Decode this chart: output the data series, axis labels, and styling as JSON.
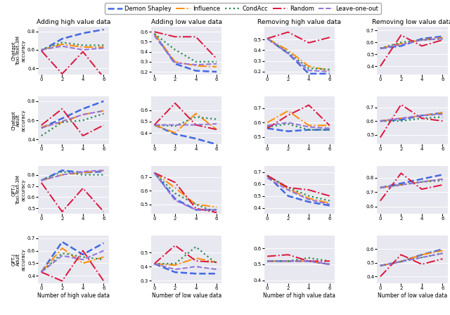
{
  "legend_labels": [
    "Demon Shapley",
    "Influence",
    "CondAcc",
    "Random",
    "Leave-one-out"
  ],
  "legend_colors": [
    "#4169e1",
    "#ff8c00",
    "#2e8b57",
    "#dc143c",
    "#9370db"
  ],
  "col_titles": [
    "Adding high value data",
    "Adding low value data",
    "Removing high value data",
    "Removing low value data"
  ],
  "row_labels": [
    [
      "Chatgpt",
      "Toxi-Text-3M"
    ],
    [
      "Chatgpt",
      "Adult"
    ],
    [
      "GPT-J",
      "Toxi-Text-3M"
    ],
    [
      "GPT-J",
      "Adult"
    ]
  ],
  "col_xlabels": [
    "Number of high value data",
    "Number of low value data",
    "Number of high value data",
    "Number of low value data"
  ],
  "x": [
    0,
    2,
    4,
    6
  ],
  "data": {
    "col0": {
      "row0": {
        "ylim": [
          0.33,
          0.85
        ],
        "yticks": [
          0.4,
          0.6,
          0.8
        ],
        "series": {
          "Demon Shapley": [
            0.59,
            0.72,
            0.78,
            0.82
          ],
          "Influence": [
            0.6,
            0.66,
            0.63,
            0.63
          ],
          "CondAcc": [
            0.6,
            0.68,
            0.65,
            0.65
          ],
          "Random": [
            0.59,
            0.34,
            0.58,
            0.3
          ],
          "Leave-one-out": [
            0.6,
            0.64,
            0.6,
            0.62
          ]
        }
      },
      "row1": {
        "ylim": [
          0.35,
          0.85
        ],
        "yticks": [
          0.4,
          0.6,
          0.8
        ],
        "series": {
          "Demon Shapley": [
            0.52,
            0.62,
            0.72,
            0.8
          ],
          "Influence": [
            0.53,
            0.58,
            0.66,
            0.7
          ],
          "CondAcc": [
            0.44,
            0.58,
            0.6,
            0.67
          ],
          "Random": [
            0.55,
            0.72,
            0.44,
            0.55
          ],
          "Leave-one-out": [
            0.52,
            0.59,
            0.66,
            0.7
          ]
        }
      },
      "row2": {
        "ylim": [
          0.45,
          0.88
        ],
        "yticks": [
          0.5,
          0.6,
          0.7,
          0.8
        ],
        "series": {
          "Demon Shapley": [
            0.75,
            0.84,
            0.82,
            0.83
          ],
          "Influence": [
            0.75,
            0.8,
            0.82,
            0.84
          ],
          "CondAcc": [
            0.75,
            0.83,
            0.8,
            0.8
          ],
          "Random": [
            0.73,
            0.47,
            0.68,
            0.47
          ],
          "Leave-one-out": [
            0.75,
            0.8,
            0.83,
            0.84
          ]
        }
      },
      "row3": {
        "ylim": [
          0.34,
          0.72
        ],
        "yticks": [
          0.4,
          0.5,
          0.6,
          0.7
        ],
        "series": {
          "Demon Shapley": [
            0.43,
            0.67,
            0.57,
            0.66
          ],
          "Influence": [
            0.43,
            0.62,
            0.5,
            0.55
          ],
          "CondAcc": [
            0.43,
            0.58,
            0.55,
            0.53
          ],
          "Random": [
            0.43,
            0.36,
            0.6,
            0.36
          ],
          "Leave-one-out": [
            0.43,
            0.56,
            0.53,
            0.6
          ]
        }
      }
    },
    "col1": {
      "row0": {
        "ylim": [
          0.17,
          0.65
        ],
        "yticks": [
          0.2,
          0.3,
          0.4,
          0.5,
          0.6
        ],
        "series": {
          "Demon Shapley": [
            0.58,
            0.28,
            0.21,
            0.2
          ],
          "Influence": [
            0.58,
            0.3,
            0.26,
            0.25
          ],
          "CondAcc": [
            0.58,
            0.42,
            0.3,
            0.3
          ],
          "Random": [
            0.6,
            0.55,
            0.55,
            0.33
          ],
          "Leave-one-out": [
            0.56,
            0.29,
            0.27,
            0.28
          ]
        }
      },
      "row1": {
        "ylim": [
          0.3,
          0.72
        ],
        "yticks": [
          0.4,
          0.5,
          0.6
        ],
        "series": {
          "Demon Shapley": [
            0.47,
            0.39,
            0.35,
            0.3
          ],
          "Influence": [
            0.47,
            0.4,
            0.57,
            0.43
          ],
          "CondAcc": [
            0.47,
            0.46,
            0.54,
            0.52
          ],
          "Random": [
            0.47,
            0.66,
            0.47,
            0.43
          ],
          "Leave-one-out": [
            0.47,
            0.47,
            0.47,
            0.48
          ]
        }
      },
      "row2": {
        "ylim": [
          0.43,
          0.78
        ],
        "yticks": [
          0.5,
          0.6,
          0.7
        ],
        "series": {
          "Demon Shapley": [
            0.73,
            0.54,
            0.46,
            0.46
          ],
          "Influence": [
            0.73,
            0.62,
            0.5,
            0.48
          ],
          "CondAcc": [
            0.73,
            0.58,
            0.5,
            0.44
          ],
          "Random": [
            0.73,
            0.66,
            0.47,
            0.44
          ],
          "Leave-one-out": [
            0.73,
            0.53,
            0.46,
            0.46
          ]
        }
      },
      "row3": {
        "ylim": [
          0.28,
          0.62
        ],
        "yticks": [
          0.3,
          0.4,
          0.5
        ],
        "series": {
          "Demon Shapley": [
            0.42,
            0.36,
            0.35,
            0.35
          ],
          "Influence": [
            0.42,
            0.41,
            0.46,
            0.43
          ],
          "CondAcc": [
            0.42,
            0.42,
            0.54,
            0.42
          ],
          "Random": [
            0.42,
            0.55,
            0.44,
            0.43
          ],
          "Leave-one-out": [
            0.42,
            0.38,
            0.4,
            0.38
          ]
        }
      }
    },
    "col2": {
      "row0": {
        "ylim": [
          0.17,
          0.62
        ],
        "yticks": [
          0.2,
          0.3,
          0.4,
          0.5
        ],
        "series": {
          "Demon Shapley": [
            0.51,
            0.37,
            0.18,
            0.18
          ],
          "Influence": [
            0.51,
            0.4,
            0.25,
            0.21
          ],
          "CondAcc": [
            0.51,
            0.38,
            0.23,
            0.22
          ],
          "Random": [
            0.51,
            0.57,
            0.47,
            0.52
          ],
          "Leave-one-out": [
            0.51,
            0.37,
            0.21,
            0.2
          ]
        }
      },
      "row1": {
        "ylim": [
          0.45,
          0.78
        ],
        "yticks": [
          0.5,
          0.6,
          0.7
        ],
        "series": {
          "Demon Shapley": [
            0.56,
            0.54,
            0.55,
            0.55
          ],
          "Influence": [
            0.6,
            0.68,
            0.58,
            0.58
          ],
          "CondAcc": [
            0.57,
            0.59,
            0.55,
            0.55
          ],
          "Random": [
            0.56,
            0.65,
            0.72,
            0.58
          ],
          "Leave-one-out": [
            0.58,
            0.6,
            0.57,
            0.56
          ]
        }
      },
      "row2": {
        "ylim": [
          0.35,
          0.75
        ],
        "yticks": [
          0.4,
          0.5,
          0.6,
          0.7
        ],
        "series": {
          "Demon Shapley": [
            0.67,
            0.5,
            0.45,
            0.42
          ],
          "Influence": [
            0.67,
            0.56,
            0.48,
            0.44
          ],
          "CondAcc": [
            0.67,
            0.57,
            0.5,
            0.46
          ],
          "Random": [
            0.67,
            0.57,
            0.55,
            0.5
          ],
          "Leave-one-out": [
            0.65,
            0.55,
            0.47,
            0.43
          ]
        }
      },
      "row3": {
        "ylim": [
          0.38,
          0.68
        ],
        "yticks": [
          0.4,
          0.5,
          0.6
        ],
        "series": {
          "Demon Shapley": [
            0.52,
            0.52,
            0.52,
            0.5
          ],
          "Influence": [
            0.52,
            0.52,
            0.52,
            0.5
          ],
          "CondAcc": [
            0.52,
            0.52,
            0.54,
            0.52
          ],
          "Random": [
            0.55,
            0.56,
            0.52,
            0.52
          ],
          "Leave-one-out": [
            0.52,
            0.52,
            0.52,
            0.5
          ]
        }
      }
    },
    "col3": {
      "row0": {
        "ylim": [
          0.33,
          0.73
        ],
        "yticks": [
          0.4,
          0.5,
          0.6,
          0.7
        ],
        "series": {
          "Demon Shapley": [
            0.55,
            0.57,
            0.63,
            0.65
          ],
          "Influence": [
            0.55,
            0.59,
            0.62,
            0.64
          ],
          "CondAcc": [
            0.55,
            0.6,
            0.62,
            0.63
          ],
          "Random": [
            0.4,
            0.66,
            0.57,
            0.62
          ],
          "Leave-one-out": [
            0.55,
            0.58,
            0.62,
            0.63
          ]
        }
      },
      "row1": {
        "ylim": [
          0.43,
          0.78
        ],
        "yticks": [
          0.5,
          0.6,
          0.7
        ],
        "series": {
          "Demon Shapley": [
            0.6,
            0.61,
            0.64,
            0.66
          ],
          "Influence": [
            0.6,
            0.62,
            0.64,
            0.66
          ],
          "CondAcc": [
            0.6,
            0.6,
            0.62,
            0.63
          ],
          "Random": [
            0.48,
            0.72,
            0.62,
            0.6
          ],
          "Leave-one-out": [
            0.6,
            0.62,
            0.64,
            0.65
          ]
        }
      },
      "row2": {
        "ylim": [
          0.55,
          0.88
        ],
        "yticks": [
          0.6,
          0.7,
          0.8
        ],
        "series": {
          "Demon Shapley": [
            0.73,
            0.76,
            0.79,
            0.82
          ],
          "Influence": [
            0.73,
            0.75,
            0.77,
            0.79
          ],
          "CondAcc": [
            0.73,
            0.75,
            0.77,
            0.78
          ],
          "Random": [
            0.64,
            0.83,
            0.72,
            0.75
          ],
          "Leave-one-out": [
            0.73,
            0.75,
            0.77,
            0.79
          ]
        }
      },
      "row3": {
        "ylim": [
          0.35,
          0.7
        ],
        "yticks": [
          0.4,
          0.5,
          0.6
        ],
        "series": {
          "Demon Shapley": [
            0.48,
            0.51,
            0.56,
            0.6
          ],
          "Influence": [
            0.48,
            0.51,
            0.56,
            0.59
          ],
          "CondAcc": [
            0.48,
            0.51,
            0.54,
            0.57
          ],
          "Random": [
            0.4,
            0.56,
            0.49,
            0.53
          ],
          "Leave-one-out": [
            0.48,
            0.51,
            0.54,
            0.57
          ]
        }
      }
    }
  }
}
